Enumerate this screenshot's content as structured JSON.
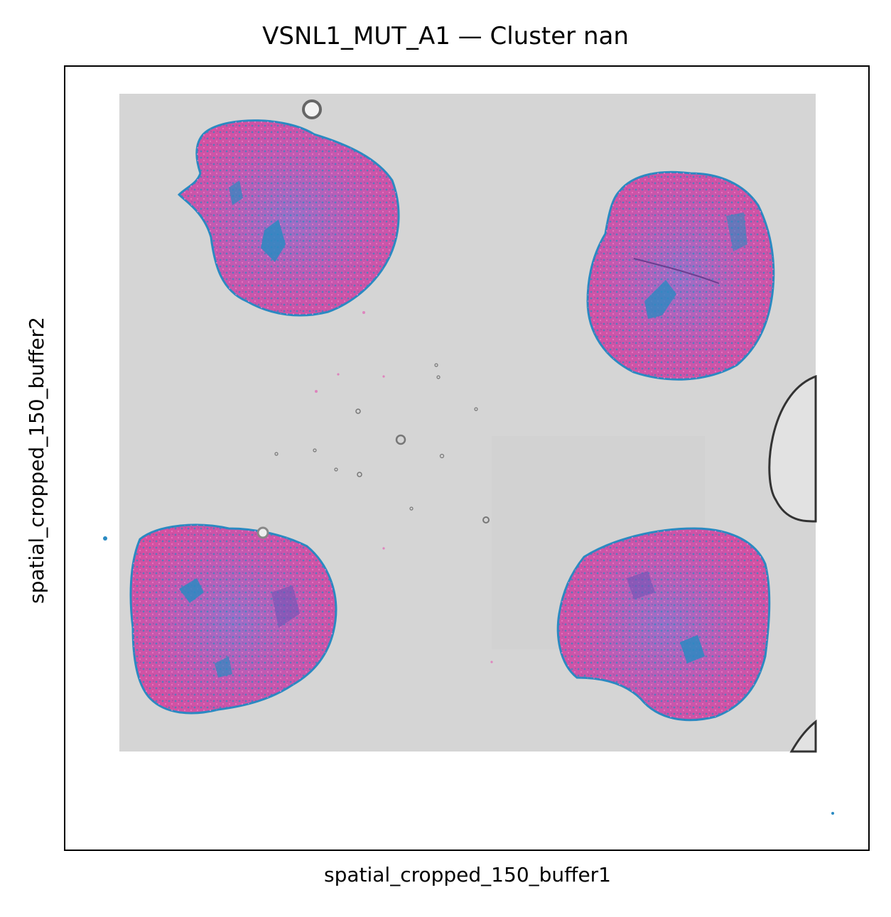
{
  "title": "VSNL1_MUT_A1 — Cluster nan",
  "xlabel": "spatial_cropped_150_buffer1",
  "ylabel": "spatial_cropped_150_buffer2",
  "colors": {
    "background_slide": "#d5d5d5",
    "tissue_pink": "#d65aa8",
    "tissue_purple": "#9a6bc2",
    "spot_blue": "#2a8ac2",
    "bubble": "#9a9a9a"
  },
  "image_content": {
    "tissue_sections": 4,
    "icons": [
      "tissue-section",
      "air-bubble"
    ]
  }
}
